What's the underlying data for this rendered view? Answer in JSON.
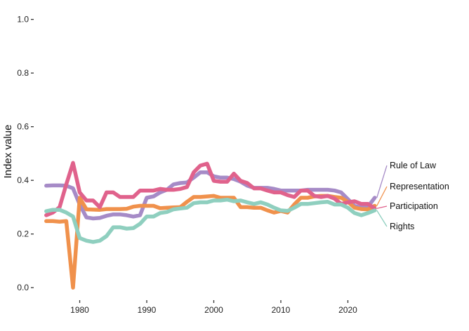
{
  "chart_data": {
    "type": "line",
    "ylabel": "Index value",
    "xlabel": "",
    "xlim": [
      1974.5,
      2025.5
    ],
    "ylim": [
      -0.01,
      1.02
    ],
    "xticks": [
      1980,
      1990,
      2000,
      2010,
      2020
    ],
    "yticks": [
      0.0,
      0.2,
      0.4,
      0.6,
      0.8,
      1.0
    ],
    "ytick_labels": [
      "0.0",
      "0.2",
      "0.4",
      "0.6",
      "0.8",
      "1.0"
    ],
    "xtick_labels": [
      "1980",
      "1990",
      "2000",
      "2010",
      "2020"
    ],
    "grid": false,
    "legend": "direct labels at right end of lines",
    "x": [
      1975,
      1976,
      1977,
      1978,
      1979,
      1980,
      1981,
      1982,
      1983,
      1984,
      1985,
      1986,
      1987,
      1988,
      1989,
      1990,
      1991,
      1992,
      1993,
      1994,
      1995,
      1996,
      1997,
      1998,
      1999,
      2000,
      2001,
      2002,
      2003,
      2004,
      2005,
      2006,
      2007,
      2008,
      2009,
      2010,
      2011,
      2012,
      2013,
      2014,
      2015,
      2016,
      2017,
      2018,
      2019,
      2020,
      2021,
      2022,
      2023,
      2024
    ],
    "series": [
      {
        "name": "Rule of Law",
        "color": "#a68bc7",
        "values": [
          0.38,
          0.381,
          0.381,
          0.38,
          0.37,
          0.31,
          0.262,
          0.258,
          0.26,
          0.268,
          0.273,
          0.273,
          0.27,
          0.265,
          0.27,
          0.335,
          0.34,
          0.355,
          0.365,
          0.385,
          0.39,
          0.392,
          0.41,
          0.43,
          0.43,
          0.415,
          0.41,
          0.41,
          0.405,
          0.395,
          0.38,
          0.372,
          0.372,
          0.372,
          0.368,
          0.362,
          0.362,
          0.362,
          0.362,
          0.365,
          0.365,
          0.365,
          0.365,
          0.362,
          0.355,
          0.33,
          0.305,
          0.298,
          0.302,
          0.335
        ]
      },
      {
        "name": "Representation",
        "color": "#f0914c",
        "values": [
          0.248,
          0.248,
          0.246,
          0.248,
          0.0,
          0.335,
          0.292,
          0.291,
          0.29,
          0.293,
          0.293,
          0.293,
          0.294,
          0.302,
          0.305,
          0.305,
          0.305,
          0.296,
          0.298,
          0.299,
          0.3,
          0.32,
          0.338,
          0.338,
          0.34,
          0.342,
          0.335,
          0.335,
          0.335,
          0.3,
          0.3,
          0.298,
          0.298,
          0.288,
          0.28,
          0.286,
          0.28,
          0.31,
          0.335,
          0.335,
          0.34,
          0.342,
          0.342,
          0.338,
          0.335,
          0.32,
          0.298,
          0.293,
          0.292,
          0.305
        ]
      },
      {
        "name": "Participation",
        "color": "#e0628c",
        "values": [
          0.27,
          0.28,
          0.3,
          0.385,
          0.465,
          0.355,
          0.325,
          0.325,
          0.3,
          0.355,
          0.355,
          0.338,
          0.338,
          0.338,
          0.362,
          0.362,
          0.362,
          0.368,
          0.365,
          0.365,
          0.368,
          0.375,
          0.43,
          0.455,
          0.462,
          0.398,
          0.395,
          0.395,
          0.425,
          0.398,
          0.39,
          0.37,
          0.37,
          0.362,
          0.355,
          0.355,
          0.345,
          0.338,
          0.362,
          0.362,
          0.342,
          0.338,
          0.342,
          0.332,
          0.312,
          0.318,
          0.322,
          0.312,
          0.312,
          0.295
        ]
      },
      {
        "name": "Rights",
        "color": "#8fcfbf",
        "values": [
          0.285,
          0.29,
          0.29,
          0.28,
          0.265,
          0.185,
          0.175,
          0.17,
          0.175,
          0.192,
          0.225,
          0.225,
          0.22,
          0.222,
          0.238,
          0.265,
          0.265,
          0.278,
          0.282,
          0.292,
          0.295,
          0.298,
          0.315,
          0.318,
          0.318,
          0.325,
          0.325,
          0.328,
          0.322,
          0.325,
          0.318,
          0.312,
          0.318,
          0.31,
          0.298,
          0.288,
          0.286,
          0.298,
          0.312,
          0.312,
          0.315,
          0.318,
          0.32,
          0.31,
          0.31,
          0.298,
          0.278,
          0.27,
          0.278,
          0.288
        ]
      }
    ],
    "labels": [
      {
        "text": "Rule of Law",
        "series": "Rule of Law"
      },
      {
        "text": "Representation",
        "series": "Representation"
      },
      {
        "text": "Participation",
        "series": "Participation"
      },
      {
        "text": "Rights",
        "series": "Rights"
      }
    ]
  }
}
